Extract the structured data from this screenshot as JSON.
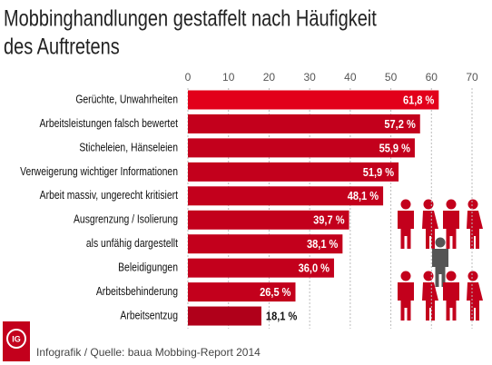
{
  "chart_data": {
    "type": "bar",
    "orientation": "horizontal",
    "title": [
      "Mobbinghandlungen gestaffelt nach Häufigkeit",
      "des Auftretens"
    ],
    "categories": [
      "Gerüchte, Unwahrheiten",
      "Arbeitsleistungen falsch bewertet",
      "Sticheleien, Hänseleien",
      "Verweigerung wichtiger Informationen",
      "Arbeit massiv, ungerecht kritisiert",
      "Ausgrenzung / Isolierung",
      "als unfähig dargestellt",
      "Beleidigungen",
      "Arbeitsbehinderung",
      "Arbeitsentzug"
    ],
    "values": [
      61.8,
      57.2,
      55.9,
      51.9,
      48.1,
      39.7,
      38.1,
      36.0,
      26.5,
      18.1
    ],
    "value_labels": [
      "61,8 %",
      "57,2 %",
      "55,9 %",
      "51,9 %",
      "48,1 %",
      "39,7 %",
      "38,1 %",
      "36,0 %",
      "26,5 %",
      "18,1 %"
    ],
    "colors": [
      "#e2001a",
      "#c3001c",
      "#c3001c",
      "#c3001c",
      "#c3001c",
      "#c3001c",
      "#c3001c",
      "#c3001c",
      "#c3001c",
      "#b0001a"
    ],
    "xlim": [
      0,
      70
    ],
    "xticks": [
      0,
      10,
      20,
      30,
      40,
      50,
      60,
      70
    ],
    "grid": true,
    "source": "Infografik / Quelle: baua Mobbing-Report 2014"
  }
}
